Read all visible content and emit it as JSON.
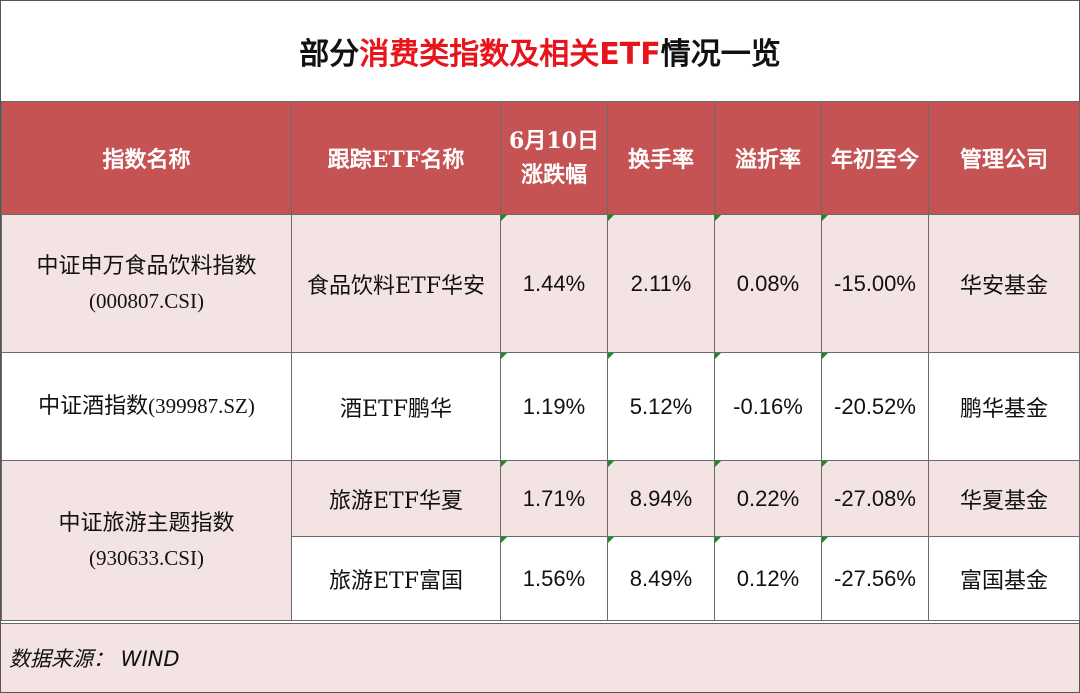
{
  "title": {
    "prefix": "部分",
    "highlight": "消费类指数及相关ETF",
    "suffix": "情况一览"
  },
  "colors": {
    "header_bg": "#c55353",
    "pink_row": "#f4e3e3",
    "title_highlight": "#e8141b"
  },
  "headers": {
    "index_name": "指数名称",
    "etf_name": "跟踪ETF名称",
    "change_line1": "6月10日",
    "change_line2": "涨跌幅",
    "turnover": "换手率",
    "premium": "溢折率",
    "ytd": "年初至今",
    "company": "管理公司"
  },
  "groups": [
    {
      "index_name": "中证申万食品饮料指数",
      "index_code": "(000807.CSI)",
      "rows": [
        {
          "etf": "食品饮料ETF华安",
          "change": "1.44%",
          "turnover": "2.11%",
          "premium": "0.08%",
          "ytd": "-15.00%",
          "company": "华安基金"
        }
      ]
    },
    {
      "index_name": "中证酒指数",
      "index_code": "(399987.SZ)",
      "rows": [
        {
          "etf": "酒ETF鹏华",
          "change": "1.19%",
          "turnover": "5.12%",
          "premium": "-0.16%",
          "ytd": "-20.52%",
          "company": "鹏华基金"
        }
      ]
    },
    {
      "index_name": "中证旅游主题指数",
      "index_code": "(930633.CSI)",
      "rows": [
        {
          "etf": "旅游ETF华夏",
          "change": "1.71%",
          "turnover": "8.94%",
          "premium": "0.22%",
          "ytd": "-27.08%",
          "company": "华夏基金"
        },
        {
          "etf": "旅游ETF富国",
          "change": "1.56%",
          "turnover": "8.49%",
          "premium": "0.12%",
          "ytd": "-27.56%",
          "company": "富国基金"
        }
      ]
    }
  ],
  "footer": {
    "source": "数据来源： WIND"
  }
}
